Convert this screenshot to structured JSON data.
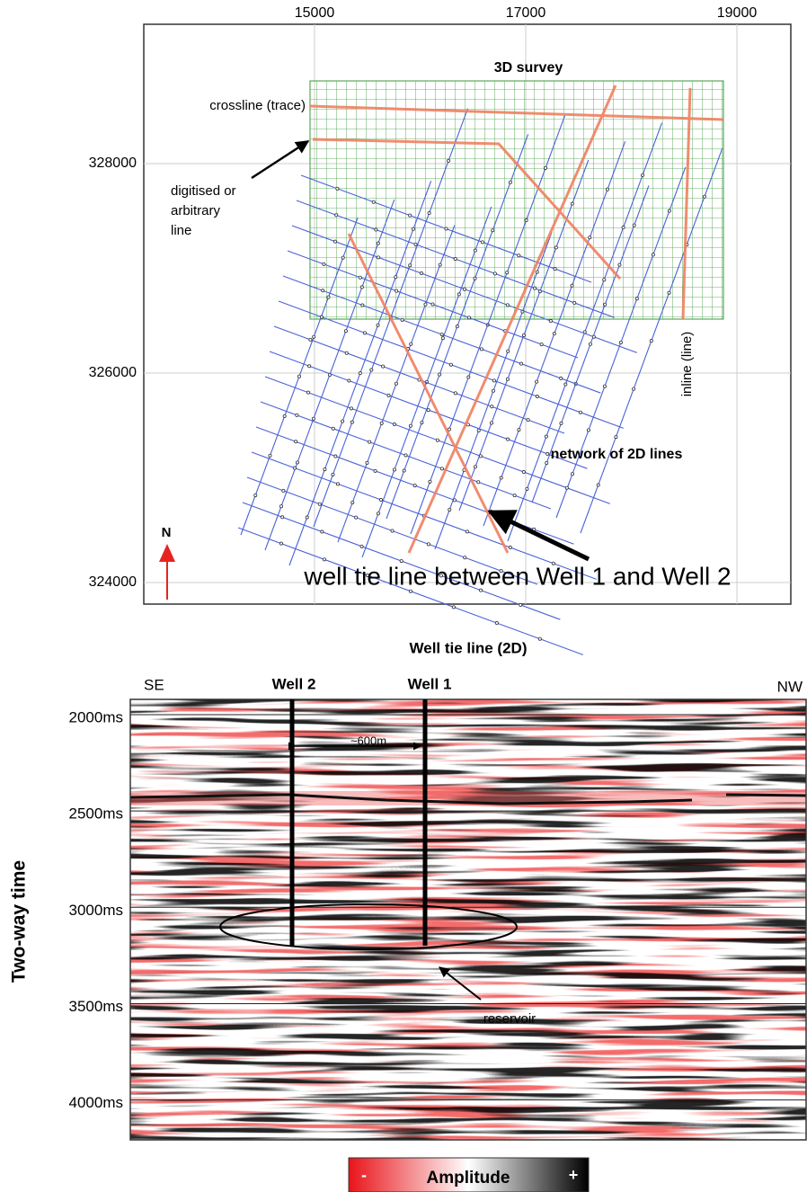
{
  "map": {
    "xticks": [
      15000,
      17000,
      19000
    ],
    "yticks": [
      328000,
      326000,
      324000
    ],
    "survey_label": "3D survey",
    "crossline_label": "crossline (trace)",
    "arbitrary_label": [
      "digitised or",
      "arbitrary",
      "line"
    ],
    "inline_label": "inline (line)",
    "network_label": "network of 2D lines",
    "well_tie_label": "well tie line between Well 1 and Well 2",
    "north_label": "N"
  },
  "section": {
    "title": "Well tie line (2D)",
    "ylabel": "Two-way time",
    "yticks": [
      {
        "value": 2000,
        "label": "2000ms"
      },
      {
        "value": 2500,
        "label": "2500ms"
      },
      {
        "value": 3000,
        "label": "3000ms"
      },
      {
        "value": 3500,
        "label": "3500ms"
      },
      {
        "value": 4000,
        "label": "4000ms"
      }
    ],
    "left_direction": "SE",
    "right_direction": "NW",
    "wells": [
      "Well 2",
      "Well 1"
    ],
    "spacing_label": "~600m",
    "reservoir_label": "reservoir"
  },
  "legend": {
    "title": "Amplitude",
    "min_label": "-",
    "max_label": "+"
  }
}
